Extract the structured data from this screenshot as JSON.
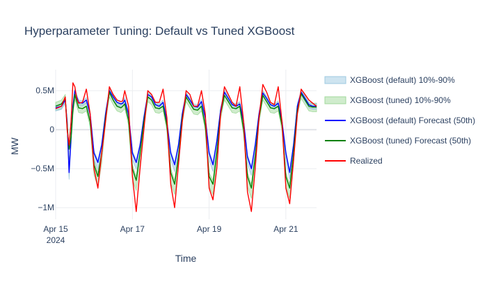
{
  "chart_data": {
    "type": "line",
    "title": "Hyperparameter Tuning: Default vs Tuned XGBoost",
    "xlabel": "Time",
    "ylabel": "MW",
    "x_range_days": [
      0,
      6.8
    ],
    "ylim": [
      -1.15,
      0.77
    ],
    "x_ticks": [
      {
        "day": 0,
        "label": "Apr 15",
        "sub": "2024"
      },
      {
        "day": 2,
        "label": "Apr 17",
        "sub": ""
      },
      {
        "day": 4,
        "label": "Apr 19",
        "sub": ""
      },
      {
        "day": 6,
        "label": "Apr 21",
        "sub": ""
      }
    ],
    "y_ticks": [
      {
        "value": 0.5,
        "label": "0.5M"
      },
      {
        "value": 0,
        "label": "0"
      },
      {
        "value": -0.5,
        "label": "−0.5M"
      },
      {
        "value": -1.0,
        "label": "−1M"
      }
    ],
    "grid": true,
    "legend_position": "right",
    "colors": {
      "default_band": "#9ecae1",
      "tuned_band": "#a1d99b",
      "default_line": "#0000ff",
      "tuned_line": "#008000",
      "realized": "#ff0000"
    },
    "legend": [
      {
        "key": "default_band",
        "label": "XGBoost (default) 10%-90%",
        "kind": "band"
      },
      {
        "key": "tuned_band",
        "label": "XGBoost (tuned) 10%-90%",
        "kind": "band"
      },
      {
        "key": "default_line",
        "label": "XGBoost (default) Forecast (50th)",
        "kind": "line"
      },
      {
        "key": "tuned_line",
        "label": "XGBoost (tuned) Forecast (50th)",
        "kind": "line"
      },
      {
        "key": "realized",
        "label": "Realized",
        "kind": "line"
      }
    ],
    "series": [
      {
        "name": "XGBoost (default) Forecast (50th)",
        "x_days": [
          0,
          0.15,
          0.25,
          0.3,
          0.35,
          0.4,
          0.45,
          0.5,
          0.55,
          0.6,
          0.7,
          0.8,
          0.9,
          1.0,
          1.1,
          1.2,
          1.3,
          1.4,
          1.5,
          1.6,
          1.7,
          1.75,
          1.8,
          1.9,
          2.0,
          2.1,
          2.2,
          2.3,
          2.4,
          2.5,
          2.6,
          2.7,
          2.8,
          2.9,
          3.0,
          3.1,
          3.2,
          3.3,
          3.4,
          3.5,
          3.6,
          3.7,
          3.8,
          3.9,
          4.0,
          4.1,
          4.2,
          4.3,
          4.4,
          4.5,
          4.6,
          4.7,
          4.8,
          4.9,
          5.0,
          5.1,
          5.2,
          5.3,
          5.4,
          5.5,
          5.6,
          5.7,
          5.8,
          5.9,
          6.0,
          6.1,
          6.2,
          6.3,
          6.4,
          6.5,
          6.6,
          6.7,
          6.8
        ],
        "values": [
          0.28,
          0.3,
          0.38,
          0.1,
          -0.55,
          -0.1,
          0.3,
          0.5,
          0.42,
          0.35,
          0.34,
          0.38,
          0.2,
          -0.3,
          -0.42,
          -0.2,
          0.2,
          0.5,
          0.42,
          0.35,
          0.33,
          0.34,
          0.38,
          0.2,
          -0.3,
          -0.42,
          -0.2,
          0.15,
          0.45,
          0.42,
          0.32,
          0.3,
          0.35,
          0.1,
          -0.3,
          -0.45,
          -0.2,
          0.2,
          0.45,
          0.38,
          0.3,
          0.29,
          0.36,
          0.15,
          -0.3,
          -0.45,
          -0.15,
          0.25,
          0.48,
          0.4,
          0.32,
          0.3,
          0.33,
          0.1,
          -0.35,
          -0.5,
          -0.2,
          0.2,
          0.47,
          0.4,
          0.32,
          0.3,
          0.34,
          0.1,
          -0.3,
          -0.55,
          -0.2,
          0.3,
          0.48,
          0.4,
          0.32,
          0.3,
          0.3
        ]
      },
      {
        "name": "XGBoost (tuned) Forecast (50th)",
        "x_days": [
          0,
          0.15,
          0.25,
          0.3,
          0.35,
          0.4,
          0.45,
          0.5,
          0.55,
          0.6,
          0.7,
          0.8,
          0.9,
          1.0,
          1.1,
          1.2,
          1.3,
          1.4,
          1.5,
          1.6,
          1.7,
          1.75,
          1.8,
          1.9,
          2.0,
          2.1,
          2.2,
          2.3,
          2.4,
          2.5,
          2.6,
          2.7,
          2.8,
          2.9,
          3.0,
          3.1,
          3.2,
          3.3,
          3.4,
          3.5,
          3.6,
          3.7,
          3.8,
          3.9,
          4.0,
          4.1,
          4.2,
          4.3,
          4.4,
          4.5,
          4.6,
          4.7,
          4.8,
          4.9,
          5.0,
          5.1,
          5.2,
          5.3,
          5.4,
          5.5,
          5.6,
          5.7,
          5.8,
          5.9,
          6.0,
          6.1,
          6.2,
          6.3,
          6.4,
          6.5,
          6.6,
          6.7,
          6.8
        ],
        "values": [
          0.3,
          0.33,
          0.4,
          0.05,
          -0.25,
          -0.1,
          0.25,
          0.45,
          0.36,
          0.28,
          0.27,
          0.3,
          0.1,
          -0.45,
          -0.6,
          -0.3,
          0.15,
          0.48,
          0.38,
          0.3,
          0.28,
          0.3,
          0.33,
          0.12,
          -0.5,
          -0.65,
          -0.3,
          0.1,
          0.42,
          0.38,
          0.28,
          0.27,
          0.3,
          0.05,
          -0.55,
          -0.7,
          -0.35,
          0.15,
          0.42,
          0.34,
          0.26,
          0.25,
          0.3,
          0.05,
          -0.6,
          -0.7,
          -0.3,
          0.2,
          0.44,
          0.36,
          0.28,
          0.27,
          0.3,
          0.0,
          -0.6,
          -0.75,
          -0.35,
          0.15,
          0.44,
          0.36,
          0.28,
          0.27,
          0.3,
          0.05,
          -0.6,
          -0.75,
          -0.3,
          0.25,
          0.46,
          0.38,
          0.3,
          0.29,
          0.29
        ]
      },
      {
        "name": "Realized",
        "x_days": [
          0,
          0.15,
          0.25,
          0.3,
          0.35,
          0.4,
          0.45,
          0.5,
          0.55,
          0.6,
          0.7,
          0.8,
          0.9,
          1.0,
          1.1,
          1.2,
          1.3,
          1.4,
          1.5,
          1.6,
          1.7,
          1.75,
          1.8,
          1.9,
          2.0,
          2.1,
          2.2,
          2.3,
          2.4,
          2.5,
          2.6,
          2.7,
          2.8,
          2.9,
          3.0,
          3.1,
          3.2,
          3.3,
          3.4,
          3.5,
          3.6,
          3.7,
          3.8,
          3.9,
          4.0,
          4.1,
          4.2,
          4.3,
          4.4,
          4.5,
          4.6,
          4.7,
          4.8,
          4.9,
          5.0,
          5.1,
          5.2,
          5.3,
          5.4,
          5.5,
          5.6,
          5.7,
          5.8,
          5.9,
          6.0,
          6.1,
          6.2,
          6.3,
          6.4,
          6.5,
          6.6,
          6.7,
          6.8
        ],
        "values": [
          0.27,
          0.3,
          0.42,
          0.0,
          -0.2,
          0.1,
          0.6,
          0.55,
          0.4,
          0.34,
          0.35,
          0.52,
          0.2,
          -0.5,
          -0.75,
          -0.3,
          0.1,
          0.55,
          0.45,
          0.38,
          0.36,
          0.37,
          0.5,
          0.3,
          -0.6,
          -1.05,
          -0.5,
          0.0,
          0.5,
          0.45,
          0.35,
          0.35,
          0.52,
          0.15,
          -0.7,
          -1.0,
          -0.45,
          0.1,
          0.5,
          0.45,
          0.3,
          0.3,
          0.5,
          0.2,
          -0.75,
          -0.9,
          -0.5,
          0.2,
          0.55,
          0.45,
          0.35,
          0.3,
          0.55,
          0.1,
          -0.8,
          -1.05,
          -0.5,
          0.15,
          0.58,
          0.48,
          0.35,
          0.32,
          0.55,
          0.1,
          -0.75,
          -0.95,
          -0.4,
          0.2,
          0.52,
          0.45,
          0.38,
          0.34,
          0.3
        ]
      }
    ]
  }
}
